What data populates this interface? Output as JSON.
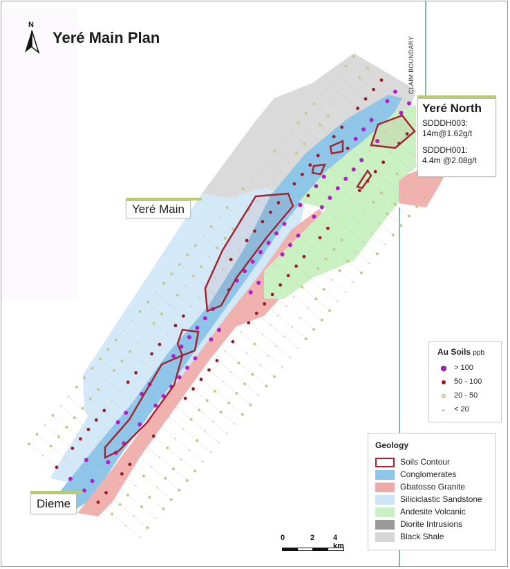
{
  "title": "Yeré Main Plan",
  "north_arrow": {
    "letter": "N",
    "icon": "north-arrow-icon"
  },
  "claim_boundary_label": "CLAIM BOUNDARY",
  "places": {
    "yere_main": "Yeré Main",
    "dieme": "Dieme",
    "yere_north": {
      "name": "Yeré North",
      "intercepts": [
        {
          "hole": "SDDDH003:",
          "result": "14m@1.62g/t"
        },
        {
          "hole": "SDDDH001:",
          "result": "4.4m @2.08g/t"
        }
      ]
    }
  },
  "au_soils_legend": {
    "title": "Au Soils",
    "unit": "ppb",
    "classes": [
      {
        "label": "> 100",
        "color": "#b21ec7"
      },
      {
        "label": "50 - 100",
        "color": "#9c1b22"
      },
      {
        "label": "20 - 50",
        "color": "#c7c58a"
      },
      {
        "label": "< 20",
        "color": "#d8c3d3"
      }
    ]
  },
  "geology_legend": {
    "title": "Geology",
    "units": [
      {
        "label": "Soils Contour",
        "color": "#a3232f",
        "style": "outline"
      },
      {
        "label": "Conglomerates",
        "color": "#8ec6ea"
      },
      {
        "label": "Gbatosso Granite",
        "color": "#eeaaa8"
      },
      {
        "label": "Siliciclastic Sandstone",
        "color": "#cde6f7"
      },
      {
        "label": "Andesite Volcanic",
        "color": "#c9f1c1"
      },
      {
        "label": "Diorite Intrusions",
        "color": "#9a9a9a"
      },
      {
        "label": "Black Shale",
        "color": "#d6d6d6"
      }
    ]
  },
  "scale_bar": {
    "ticks": [
      "0",
      "2",
      "4 km"
    ]
  }
}
